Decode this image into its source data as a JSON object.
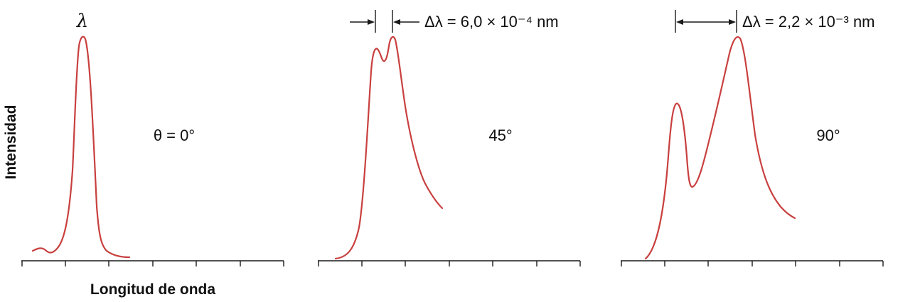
{
  "chart_data": {
    "type": "line",
    "y_label": "Intensidad",
    "x_label": "Longitud de onda",
    "color": "#c8403f",
    "panels": [
      {
        "angle_label": "θ = 0°",
        "peak_symbol": "λ",
        "separation_label": "",
        "ticks": 7
      },
      {
        "angle_label": "45°",
        "peak_symbol": "",
        "separation_label": "Δλ = 6,0 × 10⁻⁴ nm",
        "ticks": 7
      },
      {
        "angle_label": "90°",
        "peak_symbol": "",
        "separation_label": "Δλ = 2,2 × 10⁻³ nm",
        "ticks": 7
      }
    ]
  }
}
